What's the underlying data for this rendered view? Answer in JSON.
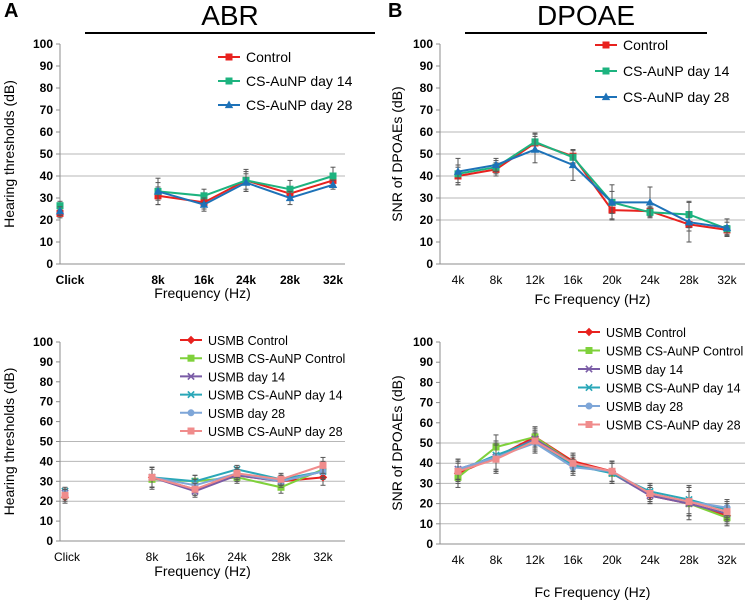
{
  "panels": {
    "A": {
      "letter": "A",
      "title": "ABR"
    },
    "B": {
      "letter": "B",
      "title": "DPOAE"
    }
  },
  "chart_data": [
    {
      "id": "abr-top",
      "type": "line",
      "title": "ABR",
      "xlabel": "Frequency (Hz)",
      "ylabel": "Hearing thresholds (dB)",
      "ylim": [
        0,
        100
      ],
      "yticks": [
        0,
        10,
        20,
        30,
        40,
        50,
        60,
        70,
        80,
        90,
        100
      ],
      "gridlines": [
        40,
        50
      ],
      "categories": [
        "Click",
        "8k",
        "16k",
        "24k",
        "28k",
        "32k"
      ],
      "categories_bold": true,
      "legend_position": "top-right",
      "series": [
        {
          "name": "Control",
          "color": "#e8221f",
          "marker": "square",
          "values": [
            23,
            31,
            28,
            38,
            32,
            38
          ],
          "errors": [
            2,
            4,
            3,
            4,
            3,
            3
          ]
        },
        {
          "name": "CS-AuNP day 14",
          "color": "#1db37f",
          "marker": "square",
          "values": [
            26.5,
            33,
            31,
            38,
            34,
            40
          ],
          "errors": [
            2,
            6,
            3,
            5,
            4,
            4
          ]
        },
        {
          "name": "CS-AuNP day 28",
          "color": "#1d72b8",
          "marker": "triangle",
          "values": [
            24,
            33,
            27,
            37,
            30,
            36
          ],
          "errors": [
            2,
            4,
            3,
            4,
            3,
            2
          ]
        }
      ]
    },
    {
      "id": "dpoae-top",
      "type": "line",
      "title": "DPOAE",
      "xlabel": "Fc Frequency (Hz)",
      "ylabel": "SNR of DPOAEs (dB)",
      "ylim": [
        0,
        100
      ],
      "yticks": [
        0,
        10,
        20,
        30,
        40,
        50,
        60,
        70,
        80,
        90,
        100
      ],
      "gridlines": [
        20,
        30,
        40,
        50,
        60
      ],
      "categories": [
        "4k",
        "8k",
        "12k",
        "16k",
        "20k",
        "24k",
        "28k",
        "32k"
      ],
      "categories_bold": false,
      "legend_position": "top-right",
      "series": [
        {
          "name": "Control",
          "color": "#e8221f",
          "marker": "square",
          "values": [
            40,
            43,
            55,
            49,
            24.5,
            24,
            18,
            15.5
          ],
          "errors": [
            4,
            3,
            4,
            3,
            4,
            2,
            3,
            2
          ]
        },
        {
          "name": "CS-AuNP day 14",
          "color": "#1db37f",
          "marker": "square",
          "values": [
            41,
            44,
            55.5,
            48.5,
            28,
            23.5,
            22.5,
            16
          ],
          "errors": [
            4,
            3,
            4,
            3,
            5,
            2,
            6,
            3
          ]
        },
        {
          "name": "CS-AuNP day 28",
          "color": "#1d72b8",
          "marker": "triangle",
          "values": [
            42,
            45,
            52,
            45,
            28,
            28,
            19,
            16.5
          ],
          "errors": [
            6,
            3,
            6,
            7,
            8,
            7,
            9,
            4
          ]
        }
      ]
    },
    {
      "id": "abr-bottom",
      "type": "line",
      "title": "",
      "xlabel": "Frequency (Hz)",
      "ylabel": "Hearing thresholds (dB)",
      "ylim": [
        0,
        100
      ],
      "yticks": [
        0,
        10,
        20,
        30,
        40,
        50,
        60,
        70,
        80,
        90,
        100
      ],
      "gridlines": [
        20,
        30,
        40,
        50
      ],
      "categories": [
        "Click",
        "8k",
        "16k",
        "24k",
        "28k",
        "32k"
      ],
      "categories_bold": false,
      "legend_position": "top-right",
      "series": [
        {
          "name": "USMB Control",
          "color": "#e8221f",
          "marker": "diamond",
          "values": [
            22,
            32,
            26,
            33,
            30,
            32
          ],
          "errors": [
            3,
            5,
            3,
            3,
            3,
            4
          ]
        },
        {
          "name": "USMB CS-AuNP Control",
          "color": "#7fd13b",
          "marker": "square",
          "values": [
            23,
            31,
            30,
            32,
            27,
            36
          ],
          "errors": [
            2,
            5,
            3,
            3,
            3,
            4
          ]
        },
        {
          "name": "USMB day 14",
          "color": "#7a5ca6",
          "marker": "x",
          "values": [
            24,
            32,
            25,
            33,
            30,
            35
          ],
          "errors": [
            2,
            5,
            3,
            3,
            3,
            4
          ]
        },
        {
          "name": "USMB CS-AuNP day 14",
          "color": "#2aa7b8",
          "marker": "x",
          "values": [
            25,
            32,
            30,
            36,
            31,
            35
          ],
          "errors": [
            2,
            5,
            3,
            2,
            2,
            4
          ]
        },
        {
          "name": "USMB day 28",
          "color": "#7ea6d8",
          "marker": "circle",
          "values": [
            24,
            32,
            28,
            34,
            30,
            35
          ],
          "errors": [
            2,
            5,
            3,
            2,
            2,
            4
          ]
        },
        {
          "name": "USMB CS-AuNP day 28",
          "color": "#f08c8c",
          "marker": "square",
          "values": [
            23,
            32,
            26,
            34,
            31,
            38
          ],
          "errors": [
            3,
            5,
            3,
            3,
            3,
            4
          ]
        }
      ]
    },
    {
      "id": "dpoae-bottom",
      "type": "line",
      "title": "",
      "xlabel": "Fc Frequency (Hz)",
      "ylabel": "SNR of DPOAEs (dB)",
      "ylim": [
        0,
        100
      ],
      "yticks": [
        0,
        10,
        20,
        30,
        40,
        50,
        60,
        70,
        80,
        90,
        100
      ],
      "gridlines": [
        10,
        20,
        30,
        40,
        50
      ],
      "categories": [
        "4k",
        "8k",
        "12k",
        "16k",
        "20k",
        "24k",
        "28k",
        "32k"
      ],
      "categories_bold": false,
      "legend_position": "top-right",
      "series": [
        {
          "name": "USMB Control",
          "color": "#e8221f",
          "marker": "diamond",
          "values": [
            35,
            43,
            53,
            41,
            36,
            24,
            20,
            14
          ],
          "errors": [
            5,
            7,
            5,
            4,
            5,
            4,
            6,
            4
          ]
        },
        {
          "name": "USMB CS-AuNP Control",
          "color": "#7fd13b",
          "marker": "square",
          "values": [
            33,
            48,
            53,
            40,
            35,
            25,
            20,
            13
          ],
          "errors": [
            5,
            6,
            5,
            4,
            5,
            4,
            6,
            4
          ]
        },
        {
          "name": "USMB day 14",
          "color": "#7a5ca6",
          "marker": "x",
          "values": [
            37,
            43,
            52,
            40,
            35,
            24,
            20,
            15
          ],
          "errors": [
            5,
            7,
            5,
            4,
            5,
            4,
            8,
            4
          ]
        },
        {
          "name": "USMB CS-AuNP day 14",
          "color": "#2aa7b8",
          "marker": "x",
          "values": [
            36,
            44,
            51,
            39,
            35,
            26,
            22,
            17
          ],
          "errors": [
            5,
            7,
            5,
            4,
            5,
            4,
            7,
            4
          ]
        },
        {
          "name": "USMB day 28",
          "color": "#7ea6d8",
          "marker": "circle",
          "values": [
            37,
            43,
            50,
            38,
            36,
            25,
            21,
            18
          ],
          "errors": [
            5,
            7,
            5,
            4,
            5,
            4,
            7,
            4
          ]
        },
        {
          "name": "USMB CS-AuNP day 28",
          "color": "#f08c8c",
          "marker": "square",
          "values": [
            36,
            42,
            51,
            40,
            36,
            25,
            21,
            16
          ],
          "errors": [
            5,
            7,
            5,
            4,
            5,
            4,
            7,
            4
          ]
        }
      ]
    }
  ]
}
